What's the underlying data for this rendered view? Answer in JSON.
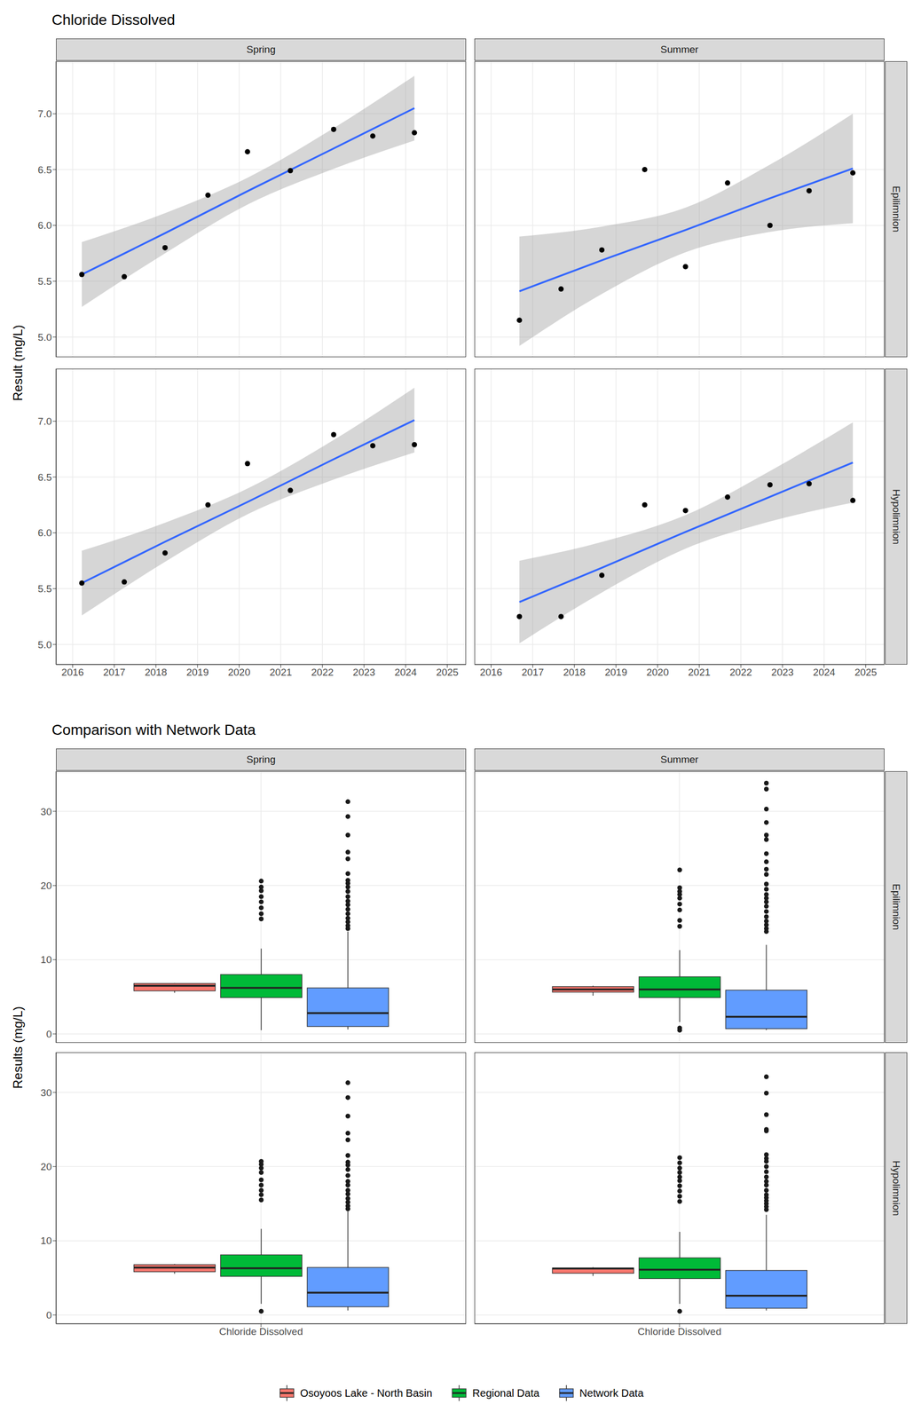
{
  "chart_data": [
    {
      "type": "scatter",
      "title": "Chloride Dissolved",
      "y_label": "Result (mg/L)",
      "xlim": [
        2015.6,
        2025.45
      ],
      "xticks": [
        2016,
        2017,
        2018,
        2019,
        2020,
        2021,
        2022,
        2023,
        2024,
        2025
      ],
      "ylim": [
        4.82,
        7.47
      ],
      "yticks": [
        {
          "value": 5,
          "label": "5.0"
        },
        {
          "value": 5.5,
          "label": "5.5"
        },
        {
          "value": 6,
          "label": "6.0"
        },
        {
          "value": 6.5,
          "label": "6.5"
        },
        {
          "value": 7,
          "label": "7.0"
        }
      ],
      "grid": true,
      "columns": [
        "Spring",
        "Summer"
      ],
      "rows": [
        "Epilimnion",
        "Hypolimnion"
      ],
      "panels": [
        {
          "column": "Spring",
          "row": "Epilimnion",
          "series": [
            {
              "type": "scatter",
              "color": "#000000",
              "marker": "circle",
              "x": [
                2016.22,
                2017.24,
                2018.22,
                2019.25,
                2020.2,
                2021.23,
                2022.27,
                2023.21,
                2024.21
              ],
              "values": [
                5.56,
                5.54,
                5.8,
                6.27,
                6.66,
                6.49,
                6.86,
                6.8,
                6.83
              ]
            },
            {
              "type": "line",
              "color": "#3366FF",
              "x": [
                2016.22,
                2018.22,
                2020.22,
                2022.22,
                2024.21
              ],
              "values": [
                5.56,
                5.93,
                6.31,
                6.68,
                7.05
              ],
              "lower": [
                5.27,
                5.75,
                6.19,
                6.5,
                6.76
              ],
              "upper": [
                5.85,
                6.11,
                6.43,
                6.86,
                7.34
              ]
            }
          ]
        },
        {
          "column": "Summer",
          "row": "Epilimnion",
          "series": [
            {
              "type": "scatter",
              "color": "#000000",
              "marker": "circle",
              "x": [
                2016.68,
                2017.68,
                2018.66,
                2019.69,
                2020.67,
                2021.68,
                2022.7,
                2023.64,
                2024.69
              ],
              "values": [
                5.15,
                5.43,
                5.78,
                6.5,
                5.63,
                6.38,
                6.0,
                6.31,
                6.47
              ]
            },
            {
              "type": "line",
              "color": "#3366FF",
              "x": [
                2016.68,
                2018.68,
                2020.68,
                2022.68,
                2024.69
              ],
              "values": [
                5.41,
                5.69,
                5.96,
                6.24,
                6.51
              ],
              "lower": [
                4.92,
                5.39,
                5.76,
                5.94,
                6.02
              ],
              "upper": [
                5.9,
                5.99,
                6.16,
                6.54,
                7.0
              ]
            }
          ]
        },
        {
          "column": "Spring",
          "row": "Hypolimnion",
          "series": [
            {
              "type": "scatter",
              "color": "#000000",
              "marker": "circle",
              "x": [
                2016.22,
                2017.24,
                2018.22,
                2019.25,
                2020.2,
                2021.23,
                2022.27,
                2023.21,
                2024.21
              ],
              "values": [
                5.55,
                5.56,
                5.82,
                6.25,
                6.62,
                6.38,
                6.88,
                6.78,
                6.79
              ]
            },
            {
              "type": "line",
              "color": "#3366FF",
              "x": [
                2016.22,
                2018.22,
                2020.22,
                2022.22,
                2024.21
              ],
              "values": [
                5.55,
                5.92,
                6.28,
                6.65,
                7.01
              ],
              "lower": [
                5.26,
                5.74,
                6.17,
                6.47,
                6.72
              ],
              "upper": [
                5.84,
                6.09,
                6.4,
                6.82,
                7.3
              ]
            }
          ]
        },
        {
          "column": "Summer",
          "row": "Hypolimnion",
          "series": [
            {
              "type": "scatter",
              "color": "#000000",
              "marker": "circle",
              "x": [
                2016.68,
                2017.68,
                2018.66,
                2019.69,
                2020.67,
                2021.68,
                2022.7,
                2023.64,
                2024.69
              ],
              "values": [
                5.25,
                5.25,
                5.62,
                6.25,
                6.2,
                6.32,
                6.43,
                6.44,
                6.29
              ]
            },
            {
              "type": "line",
              "color": "#3366FF",
              "x": [
                2016.68,
                2018.68,
                2020.68,
                2022.68,
                2024.69
              ],
              "values": [
                5.38,
                5.69,
                6.01,
                6.32,
                6.63
              ],
              "lower": [
                5.01,
                5.47,
                5.86,
                6.1,
                6.27
              ],
              "upper": [
                5.75,
                5.92,
                6.16,
                6.55,
                6.99
              ]
            }
          ]
        }
      ]
    },
    {
      "type": "box",
      "title": "Comparison with Network Data",
      "y_label": "Results (mg/L)",
      "categories": [
        "Chloride Dissolved"
      ],
      "ylim": [
        -1.2,
        35.4
      ],
      "yticks": [
        0,
        10,
        20,
        30
      ],
      "grid": true,
      "legend": "bottom",
      "columns": [
        "Spring",
        "Summer"
      ],
      "rows": [
        "Epilimnion",
        "Hypolimnion"
      ],
      "series": [
        {
          "name": "Osoyoos Lake - North Basin",
          "color": "#F8766D"
        },
        {
          "name": "Regional Data",
          "color": "#00BA38"
        },
        {
          "name": "Network Data",
          "color": "#619CFF"
        }
      ],
      "panels": [
        {
          "column": "Spring",
          "row": "Epilimnion",
          "boxes": [
            {
              "low": 5.54,
              "q1": 5.8,
              "median": 6.49,
              "q3": 6.8,
              "high": 6.86,
              "outliers": []
            },
            {
              "low": 0.5,
              "q1": 4.9,
              "median": 6.2,
              "q3": 8.0,
              "high": 11.5,
              "outliers": [
                15.5,
                16.2,
                17.0,
                17.8,
                18.5,
                19.3,
                19.8,
                20.6
              ]
            },
            {
              "low": 0.6,
              "q1": 1.0,
              "median": 2.8,
              "q3": 6.2,
              "high": 13.8,
              "outliers": [
                14.2,
                14.6,
                15.1,
                15.6,
                16.2,
                16.8,
                17.4,
                17.9,
                18.5,
                19.2,
                19.8,
                20.3,
                20.7,
                21.6,
                23.6,
                24.5,
                26.8,
                29.3,
                31.3
              ]
            }
          ]
        },
        {
          "column": "Summer",
          "row": "Epilimnion",
          "boxes": [
            {
              "low": 5.15,
              "q1": 5.63,
              "median": 6.0,
              "q3": 6.38,
              "high": 6.5,
              "outliers": []
            },
            {
              "low": 1.6,
              "q1": 4.9,
              "median": 6.0,
              "q3": 7.7,
              "high": 11.3,
              "outliers": [
                0.5,
                0.8,
                14.5,
                15.3,
                16.7,
                17.5,
                18.3,
                18.8,
                19.2,
                19.7,
                22.1
              ]
            },
            {
              "low": 0.5,
              "q1": 0.7,
              "median": 2.3,
              "q3": 5.9,
              "high": 12.0,
              "outliers": [
                13.8,
                14.2,
                14.7,
                15.2,
                15.8,
                16.5,
                17.2,
                17.8,
                18.3,
                18.8,
                19.5,
                20.2,
                21.5,
                22.2,
                23.2,
                24.3,
                26.2,
                26.8,
                28.5,
                30.3,
                33.0,
                33.8
              ]
            }
          ]
        },
        {
          "column": "Spring",
          "row": "Hypolimnion",
          "boxes": [
            {
              "low": 5.55,
              "q1": 5.82,
              "median": 6.38,
              "q3": 6.78,
              "high": 6.88,
              "outliers": []
            },
            {
              "low": 1.5,
              "q1": 5.2,
              "median": 6.3,
              "q3": 8.1,
              "high": 11.6,
              "outliers": [
                0.5,
                15.5,
                16.2,
                16.8,
                17.5,
                18.2,
                19.2,
                19.8,
                20.3,
                20.7
              ]
            },
            {
              "low": 0.6,
              "q1": 1.1,
              "median": 3.0,
              "q3": 6.4,
              "high": 14.0,
              "outliers": [
                14.3,
                14.7,
                15.2,
                15.7,
                16.3,
                16.8,
                17.5,
                18.0,
                18.8,
                19.6,
                20.2,
                20.6,
                21.5,
                23.6,
                24.5,
                26.8,
                29.3,
                31.3
              ]
            }
          ]
        },
        {
          "column": "Summer",
          "row": "Hypolimnion",
          "boxes": [
            {
              "low": 5.25,
              "q1": 5.62,
              "median": 6.25,
              "q3": 6.32,
              "high": 6.44,
              "outliers": []
            },
            {
              "low": 1.5,
              "q1": 4.9,
              "median": 6.1,
              "q3": 7.7,
              "high": 11.2,
              "outliers": [
                0.5,
                15.3,
                16.0,
                16.7,
                17.4,
                18.1,
                18.6,
                19.2,
                19.8,
                20.5,
                21.2
              ]
            },
            {
              "low": 0.6,
              "q1": 0.9,
              "median": 2.6,
              "q3": 6.0,
              "high": 13.5,
              "outliers": [
                14.2,
                14.6,
                15.0,
                15.4,
                15.8,
                16.2,
                16.8,
                17.5,
                18.0,
                18.6,
                19.3,
                20.0,
                20.7,
                21.1,
                21.6,
                24.8,
                25.0,
                27.0,
                29.9,
                32.1
              ]
            }
          ]
        }
      ]
    }
  ]
}
